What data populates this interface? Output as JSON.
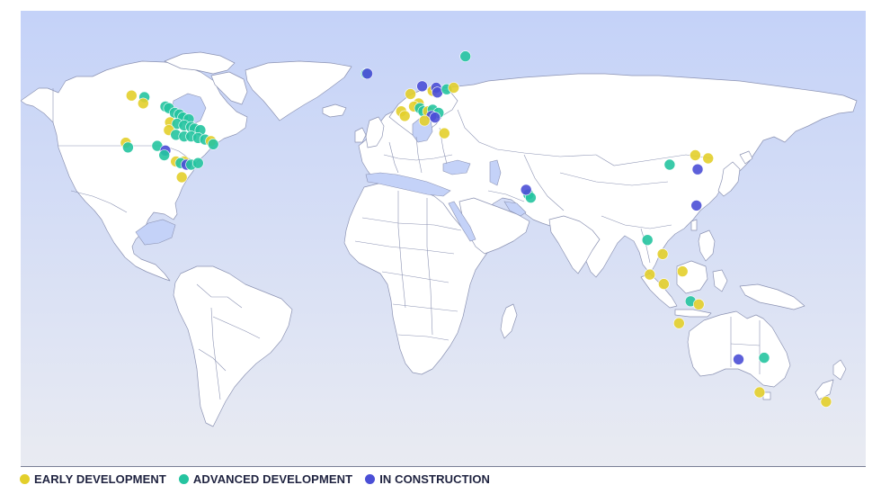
{
  "colors": {
    "early": "#e3cf2b",
    "advanced": "#25c4a0",
    "construction": "#4b4fd6",
    "land": "#ffffff",
    "border": "#8c93b3",
    "ocean_top": "#c4d2f8",
    "ocean_bottom": "#e9ebf2",
    "baseline": "#7a7f95"
  },
  "legend": {
    "early": {
      "label": "EARLY DEVELOPMENT",
      "status": "early"
    },
    "advanced": {
      "label": "ADVANCED DEVELOPMENT",
      "status": "advanced"
    },
    "construction": {
      "label": "IN CONSTRUCTION",
      "status": "construction"
    }
  },
  "projects": [
    {
      "status": "early",
      "lon": -122.5,
      "lat": 57.0
    },
    {
      "status": "advanced",
      "lon": -117.0,
      "lat": 56.5
    },
    {
      "status": "early",
      "lon": -117.5,
      "lat": 54.5
    },
    {
      "status": "advanced",
      "lon": -108.0,
      "lat": 53.5
    },
    {
      "status": "advanced",
      "lon": -106.5,
      "lat": 53.0
    },
    {
      "status": "advanced",
      "lon": -104.0,
      "lat": 51.5
    },
    {
      "status": "advanced",
      "lon": -102.0,
      "lat": 51.0
    },
    {
      "status": "advanced",
      "lon": -100.5,
      "lat": 50.0
    },
    {
      "status": "advanced",
      "lon": -98.0,
      "lat": 49.5
    },
    {
      "status": "early",
      "lon": -106.0,
      "lat": 48.5
    },
    {
      "status": "advanced",
      "lon": -103.0,
      "lat": 48.0
    },
    {
      "status": "advanced",
      "lon": -100.0,
      "lat": 47.5
    },
    {
      "status": "advanced",
      "lon": -97.0,
      "lat": 47.0
    },
    {
      "status": "advanced",
      "lon": -95.5,
      "lat": 46.5
    },
    {
      "status": "advanced",
      "lon": -93.0,
      "lat": 46.0
    },
    {
      "status": "early",
      "lon": -106.5,
      "lat": 46.0
    },
    {
      "status": "advanced",
      "lon": -103.5,
      "lat": 44.5
    },
    {
      "status": "advanced",
      "lon": -100.0,
      "lat": 44.0
    },
    {
      "status": "advanced",
      "lon": -97.0,
      "lat": 44.0
    },
    {
      "status": "advanced",
      "lon": -94.0,
      "lat": 43.5
    },
    {
      "status": "advanced",
      "lon": -91.0,
      "lat": 43.0
    },
    {
      "status": "early",
      "lon": -88.5,
      "lat": 42.5
    },
    {
      "status": "advanced",
      "lon": -87.5,
      "lat": 41.5
    },
    {
      "status": "early",
      "lon": -125.0,
      "lat": 42.0
    },
    {
      "status": "advanced",
      "lon": -124.0,
      "lat": 40.5
    },
    {
      "status": "advanced",
      "lon": -111.5,
      "lat": 41.0
    },
    {
      "status": "construction",
      "lon": -108.0,
      "lat": 39.5
    },
    {
      "status": "advanced",
      "lon": -108.5,
      "lat": 38.0
    },
    {
      "status": "early",
      "lon": -103.5,
      "lat": 36.0
    },
    {
      "status": "early",
      "lon": -100.0,
      "lat": 36.0
    },
    {
      "status": "advanced",
      "lon": -101.5,
      "lat": 35.5
    },
    {
      "status": "construction",
      "lon": -99.0,
      "lat": 35.0
    },
    {
      "status": "advanced",
      "lon": -97.0,
      "lat": 35.0
    },
    {
      "status": "advanced",
      "lon": -94.0,
      "lat": 35.5
    },
    {
      "status": "early",
      "lon": -101.0,
      "lat": 31.0
    },
    {
      "status": "advanced",
      "lon": -22.0,
      "lat": 64.0
    },
    {
      "status": "construction",
      "lon": -21.5,
      "lat": 64.0
    },
    {
      "status": "advanced",
      "lon": 20.5,
      "lat": 69.5
    },
    {
      "status": "early",
      "lon": -3.0,
      "lat": 57.5
    },
    {
      "status": "construction",
      "lon": 2.0,
      "lat": 60.0
    },
    {
      "status": "early",
      "lon": 6.5,
      "lat": 58.5
    },
    {
      "status": "construction",
      "lon": 8.0,
      "lat": 59.5
    },
    {
      "status": "construction",
      "lon": 8.5,
      "lat": 58.0
    },
    {
      "status": "advanced",
      "lon": 12.5,
      "lat": 59.0
    },
    {
      "status": "early",
      "lon": 15.5,
      "lat": 59.5
    },
    {
      "status": "early",
      "lon": 0.5,
      "lat": 54.5
    },
    {
      "status": "early",
      "lon": -1.5,
      "lat": 53.5
    },
    {
      "status": "advanced",
      "lon": 1.0,
      "lat": 53.0
    },
    {
      "status": "advanced",
      "lon": 2.5,
      "lat": 52.0
    },
    {
      "status": "early",
      "lon": 4.5,
      "lat": 52.0
    },
    {
      "status": "advanced",
      "lon": 6.5,
      "lat": 52.5
    },
    {
      "status": "advanced",
      "lon": 9.0,
      "lat": 51.5
    },
    {
      "status": "construction",
      "lon": 6.0,
      "lat": 50.5
    },
    {
      "status": "construction",
      "lon": 7.5,
      "lat": 50.0
    },
    {
      "status": "early",
      "lon": -7.0,
      "lat": 52.0
    },
    {
      "status": "early",
      "lon": -5.5,
      "lat": 50.5
    },
    {
      "status": "early",
      "lon": 3.0,
      "lat": 49.0
    },
    {
      "status": "early",
      "lon": 11.5,
      "lat": 45.0
    },
    {
      "status": "advanced",
      "lon": 47.5,
      "lat": 25.5
    },
    {
      "status": "advanced",
      "lon": 48.5,
      "lat": 24.5
    },
    {
      "status": "construction",
      "lon": 46.5,
      "lat": 27.0
    },
    {
      "status": "advanced",
      "lon": 108.0,
      "lat": 35.0
    },
    {
      "status": "early",
      "lon": 119.0,
      "lat": 38.0
    },
    {
      "status": "early",
      "lon": 124.5,
      "lat": 37.0
    },
    {
      "status": "construction",
      "lon": 120.0,
      "lat": 33.5
    },
    {
      "status": "construction",
      "lon": 119.5,
      "lat": 22.0
    },
    {
      "status": "advanced",
      "lon": 98.5,
      "lat": 11.0
    },
    {
      "status": "early",
      "lon": 105.0,
      "lat": 6.5
    },
    {
      "status": "early",
      "lon": 99.5,
      "lat": 0.0
    },
    {
      "status": "early",
      "lon": 105.5,
      "lat": -3.0
    },
    {
      "status": "early",
      "lon": 113.5,
      "lat": 1.0
    },
    {
      "status": "advanced",
      "lon": 117.0,
      "lat": -8.5
    },
    {
      "status": "early",
      "lon": 120.5,
      "lat": -9.5
    },
    {
      "status": "early",
      "lon": 112.0,
      "lat": -15.5
    },
    {
      "status": "construction",
      "lon": 137.5,
      "lat": -27.0
    },
    {
      "status": "advanced",
      "lon": 148.5,
      "lat": -26.5
    },
    {
      "status": "early",
      "lon": 146.5,
      "lat": -37.5
    },
    {
      "status": "early",
      "lon": 175.0,
      "lat": -40.5
    }
  ]
}
